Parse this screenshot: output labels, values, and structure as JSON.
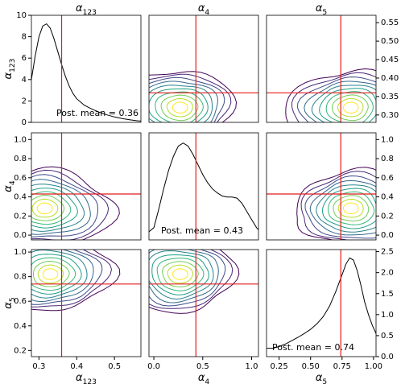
{
  "chart_data": {
    "type": "corner_plot",
    "parameters": [
      {
        "key": "a123",
        "label": "α",
        "sub": "123",
        "range": [
          0.28,
          0.57
        ],
        "ticks": [
          0.3,
          0.4,
          0.5
        ],
        "tick_labels": [
          "0.3",
          "0.4",
          "0.5"
        ],
        "truth": 0.36
      },
      {
        "key": "a4",
        "label": "α",
        "sub": "4",
        "range": [
          -0.05,
          1.07
        ],
        "ticks": [
          0.0,
          0.2,
          0.4,
          0.6,
          0.8,
          1.0
        ],
        "tick_labels": [
          "0.0",
          "0.2",
          "0.4",
          "0.6",
          "0.8",
          "1.0"
        ],
        "bottom_ticks": [
          0.0,
          0.5,
          1.0
        ],
        "bottom_tick_labels": [
          "0.0",
          "0.5",
          "1.0"
        ],
        "truth": 0.43
      },
      {
        "key": "a5",
        "label": "α",
        "sub": "5",
        "range": [
          0.15,
          1.02
        ],
        "ticks": [
          0.2,
          0.4,
          0.6,
          0.8,
          1.0
        ],
        "tick_labels": [
          "0.2",
          "0.4",
          "0.6",
          "0.8",
          "1.0"
        ],
        "bottom_ticks": [
          0.25,
          0.5,
          0.75,
          1.0
        ],
        "bottom_tick_labels": [
          "0.25",
          "0.50",
          "0.75",
          "1.00"
        ],
        "truth": 0.74
      }
    ],
    "diagonals": [
      {
        "param": 0,
        "post_mean_text": "Post. mean = 0.36",
        "yaxis": {
          "side": "left",
          "range": [
            0,
            10
          ],
          "ticks": [
            0,
            2,
            4,
            6,
            8,
            10
          ],
          "tick_labels": [
            "0",
            "2",
            "4",
            "6",
            "8",
            "10"
          ]
        },
        "x": [
          0.28,
          0.29,
          0.3,
          0.31,
          0.32,
          0.33,
          0.34,
          0.35,
          0.36,
          0.37,
          0.38,
          0.39,
          0.4,
          0.42,
          0.44,
          0.46,
          0.48,
          0.5,
          0.52,
          0.54,
          0.56,
          0.57
        ],
        "y": [
          4.0,
          6.2,
          8.0,
          9.0,
          9.2,
          8.8,
          7.8,
          6.6,
          5.4,
          4.3,
          3.4,
          2.7,
          2.2,
          1.6,
          1.25,
          0.95,
          0.7,
          0.5,
          0.35,
          0.25,
          0.15,
          0.12
        ]
      },
      {
        "param": 1,
        "post_mean_text": "Post. mean = 0.43",
        "yaxis": null,
        "x": [
          -0.05,
          0.0,
          0.05,
          0.1,
          0.15,
          0.2,
          0.25,
          0.3,
          0.35,
          0.4,
          0.45,
          0.5,
          0.55,
          0.6,
          0.65,
          0.7,
          0.75,
          0.8,
          0.85,
          0.9,
          0.95,
          1.0,
          1.05,
          1.07
        ],
        "y": [
          0.08,
          0.12,
          0.3,
          0.5,
          0.68,
          0.82,
          0.92,
          0.95,
          0.92,
          0.84,
          0.74,
          0.64,
          0.56,
          0.5,
          0.46,
          0.43,
          0.42,
          0.42,
          0.41,
          0.36,
          0.28,
          0.2,
          0.12,
          0.1
        ],
        "ymax": 1.05
      },
      {
        "param": 2,
        "post_mean_text": "Post. mean = 0.74",
        "yaxis": {
          "side": "right",
          "range": [
            0,
            2.55
          ],
          "ticks": [
            0.0,
            0.5,
            1.0,
            1.5,
            2.0,
            2.5
          ],
          "tick_labels": [
            "0.0",
            "0.5",
            "1.0",
            "1.5",
            "2.0",
            "2.5"
          ]
        },
        "x": [
          0.15,
          0.2,
          0.25,
          0.3,
          0.35,
          0.4,
          0.45,
          0.5,
          0.55,
          0.6,
          0.65,
          0.7,
          0.75,
          0.78,
          0.81,
          0.84,
          0.87,
          0.9,
          0.93,
          0.96,
          0.99,
          1.02
        ],
        "y": [
          0.2,
          0.2,
          0.24,
          0.3,
          0.38,
          0.46,
          0.55,
          0.65,
          0.78,
          0.95,
          1.2,
          1.55,
          1.95,
          2.2,
          2.35,
          2.3,
          2.05,
          1.7,
          1.3,
          1.0,
          0.75,
          0.55
        ]
      }
    ],
    "right_axis_top": {
      "range": [
        0.28,
        0.57
      ],
      "ticks": [
        0.3,
        0.35,
        0.4,
        0.45,
        0.5,
        0.55
      ],
      "tick_labels": [
        "0.30",
        "0.35",
        "0.40",
        "0.45",
        "0.50",
        "0.55"
      ]
    },
    "contour_levels": 10,
    "contour_colormap": [
      "#440154",
      "#482878",
      "#3e4a89",
      "#31688e",
      "#26828e",
      "#1f9e89",
      "#35b779",
      "#6ece58",
      "#b5de2b",
      "#fde725"
    ],
    "joint_modes": [
      {
        "row": 1,
        "col": 0,
        "mode_x": 0.315,
        "mode_y": 0.28
      },
      {
        "row": 2,
        "col": 0,
        "mode_x": 0.33,
        "mode_y": 0.82
      },
      {
        "row": 2,
        "col": 1,
        "mode_x": 0.27,
        "mode_y": 0.82
      },
      {
        "row": 0,
        "col": 1,
        "mode_x": 0.27,
        "mode_y": 0.32
      },
      {
        "row": 0,
        "col": 2,
        "mode_x": 0.82,
        "mode_y": 0.32
      },
      {
        "row": 1,
        "col": 2,
        "mode_x": 0.82,
        "mode_y": 0.28
      }
    ]
  }
}
